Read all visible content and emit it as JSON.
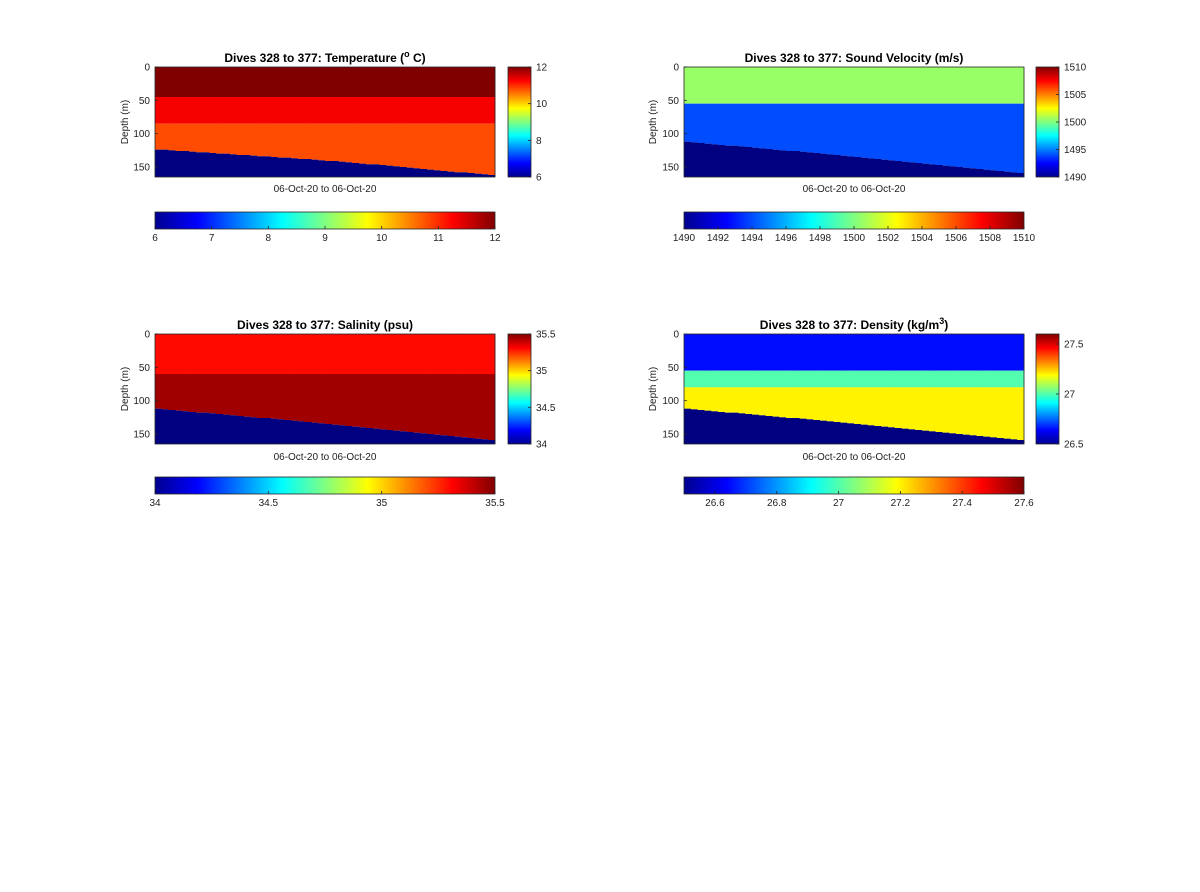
{
  "figure": {
    "background": "#ffffff",
    "colormap": "jet"
  },
  "chart_data": [
    {
      "type": "heatmap",
      "variable": "temperature",
      "title_main": "Dives 328 to 377: Temperature (",
      "title_sup": "o",
      "title_end": " C)",
      "ylabel": "Depth (m)",
      "xlabel": "06-Oct-20 to 06-Oct-20",
      "dives": [
        328,
        377
      ],
      "ylim": [
        0,
        165
      ],
      "y_reversed": true,
      "yticks": [
        "0",
        "50",
        "100",
        "150"
      ],
      "clim": [
        6,
        12
      ],
      "side_colorbar_ticks": [
        "6",
        "8",
        "10",
        "12"
      ],
      "bottom_colorbar_ticks": [
        "6",
        "7",
        "8",
        "9",
        "10",
        "11",
        "12"
      ],
      "bottom_depth_start": [
        124,
        124,
        125,
        126,
        126,
        127,
        128,
        128,
        129,
        130,
        130,
        131,
        132,
        132,
        133,
        134,
        134,
        135,
        136,
        136,
        137,
        138,
        138,
        139,
        140,
        141,
        141,
        142,
        143,
        144,
        145,
        146,
        146,
        147,
        148,
        149,
        150,
        151,
        152,
        153,
        154,
        155,
        156,
        157,
        158,
        158,
        159,
        160,
        161,
        162
      ],
      "layers": [
        {
          "from_depth": 0,
          "value": 12
        },
        {
          "from_depth": 45,
          "value": 11.3
        },
        {
          "from_depth": 85,
          "value": 10.8
        }
      ],
      "below_bottom_value": 6
    },
    {
      "type": "heatmap",
      "variable": "sound_velocity",
      "title_main": "Dives 328 to 377: Sound Velocity (m/s)",
      "title_sup": "",
      "title_end": "",
      "ylabel": "Depth (m)",
      "xlabel": "06-Oct-20 to 06-Oct-20",
      "dives": [
        328,
        377
      ],
      "ylim": [
        0,
        165
      ],
      "y_reversed": true,
      "yticks": [
        "0",
        "50",
        "100",
        "150"
      ],
      "clim": [
        1490,
        1510
      ],
      "side_colorbar_ticks": [
        "1490",
        "1495",
        "1500",
        "1505",
        "1510"
      ],
      "bottom_colorbar_ticks": [
        "1490",
        "1492",
        "1494",
        "1496",
        "1498",
        "1500",
        "1502",
        "1504",
        "1506",
        "1508",
        "1510"
      ],
      "bottom_depth_start": [
        112,
        113,
        114,
        115,
        116,
        117,
        118,
        118,
        119,
        120,
        121,
        122,
        123,
        124,
        125,
        126,
        126,
        127,
        128,
        129,
        130,
        131,
        132,
        133,
        134,
        135,
        136,
        137,
        138,
        139,
        140,
        141,
        142,
        143,
        144,
        145,
        146,
        147,
        148,
        149,
        150,
        151,
        152,
        153,
        154,
        155,
        156,
        157,
        158,
        159
      ],
      "layers": [
        {
          "from_depth": 0,
          "value": 1500.5
        },
        {
          "from_depth": 55,
          "value": 1494
        }
      ],
      "below_bottom_value": 1490
    },
    {
      "type": "heatmap",
      "variable": "salinity",
      "title_main": "Dives 328 to 377: Salinity (psu)",
      "title_sup": "",
      "title_end": "",
      "ylabel": "Depth (m)",
      "xlabel": "06-Oct-20 to 06-Oct-20",
      "dives": [
        328,
        377
      ],
      "ylim": [
        0,
        165
      ],
      "y_reversed": true,
      "yticks": [
        "0",
        "50",
        "100",
        "150"
      ],
      "clim": [
        34,
        35.5
      ],
      "side_colorbar_ticks": [
        "34",
        "34.5",
        "35",
        "35.5"
      ],
      "bottom_colorbar_ticks": [
        "34",
        "34.5",
        "35",
        "35.5"
      ],
      "bottom_depth_start": [
        112,
        113,
        114,
        115,
        116,
        117,
        118,
        118,
        119,
        120,
        121,
        122,
        123,
        124,
        125,
        126,
        126,
        127,
        128,
        129,
        130,
        131,
        132,
        133,
        134,
        135,
        136,
        137,
        138,
        139,
        140,
        141,
        142,
        143,
        144,
        145,
        146,
        147,
        148,
        149,
        150,
        151,
        152,
        153,
        154,
        155,
        156,
        157,
        158,
        159
      ],
      "layers": [
        {
          "from_depth": 0,
          "value": 35.3
        },
        {
          "from_depth": 60,
          "value": 35.45
        }
      ],
      "below_bottom_value": 34
    },
    {
      "type": "heatmap",
      "variable": "density",
      "title_main": "Dives 328 to 377: Density (kg/m",
      "title_sup": "3",
      "title_end": ")",
      "ylabel": "Depth (m)",
      "xlabel": "06-Oct-20 to 06-Oct-20",
      "dives": [
        328,
        377
      ],
      "ylim": [
        0,
        165
      ],
      "y_reversed": true,
      "yticks": [
        "0",
        "50",
        "100",
        "150"
      ],
      "clim": [
        26.5,
        27.6
      ],
      "side_colorbar_ticks": [
        "26.5",
        "27",
        "27.5"
      ],
      "bottom_colorbar_ticks": [
        "26.6",
        "26.8",
        "27",
        "27.2",
        "27.4",
        "27.6"
      ],
      "bottom_depth_start": [
        112,
        113,
        114,
        115,
        116,
        117,
        118,
        118,
        119,
        120,
        121,
        122,
        123,
        124,
        125,
        126,
        126,
        127,
        128,
        129,
        130,
        131,
        132,
        133,
        134,
        135,
        136,
        137,
        138,
        139,
        140,
        141,
        142,
        143,
        144,
        145,
        146,
        147,
        148,
        149,
        150,
        151,
        152,
        153,
        154,
        155,
        156,
        157,
        158,
        159
      ],
      "layers": [
        {
          "from_depth": 0,
          "value": 26.65
        },
        {
          "from_depth": 55,
          "value": 27.0
        },
        {
          "from_depth": 80,
          "value": 27.2
        }
      ],
      "below_bottom_value": 26.5
    }
  ]
}
